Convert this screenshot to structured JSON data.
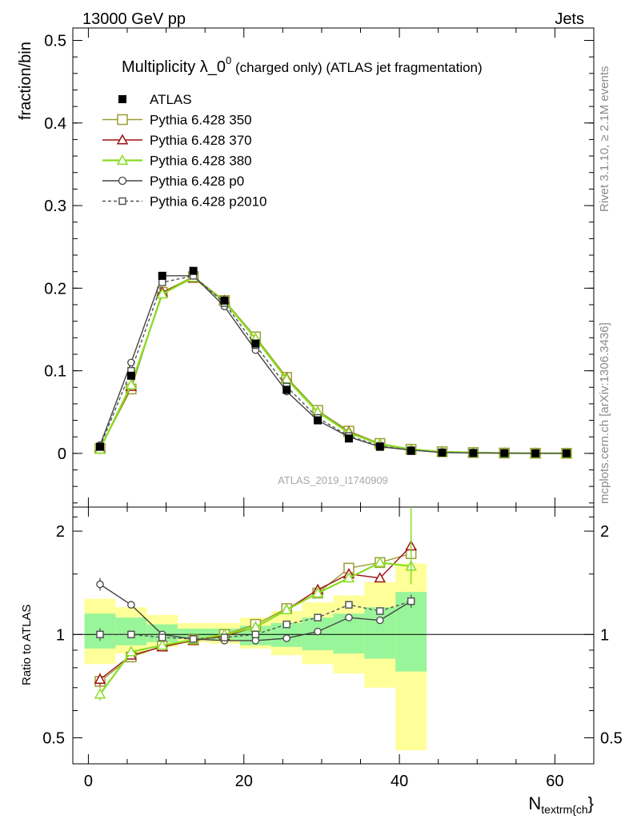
{
  "header": {
    "left": "13000 GeV pp",
    "right": "Jets"
  },
  "side_labels": {
    "top": "Rivet 3.1.10, ≥ 2.1M events",
    "bottom": "mcplots.cern.ch [arXiv:1306.3436]"
  },
  "chart_data": {
    "type": "line",
    "title_main": "Multiplicity λ_0",
    "title_sup": "0",
    "title_rest": " (charged only) (ATLAS jet fragmentation)",
    "watermark": "ATLAS_2019_I1740909",
    "ylabel": "fraction/bin",
    "ratio_ylabel": "Ratio to ATLAS",
    "xlabel_main": "N",
    "xlabel_sub": "textrm{ch",
    "xlabel_close": "}",
    "xlim": [
      -2,
      65
    ],
    "ylim": [
      -0.065,
      0.515
    ],
    "ratio_ylim": [
      0.42,
      2.35
    ],
    "x_ticks": [
      0,
      20,
      40,
      60
    ],
    "x_tick_labels": [
      "0",
      "20",
      "40",
      "60"
    ],
    "y_ticks": [
      0,
      0.1,
      0.2,
      0.3,
      0.4,
      0.5
    ],
    "y_tick_labels": [
      "0",
      "0.1",
      "0.2",
      "0.3",
      "0.4",
      "0.5"
    ],
    "ratio_y_ticks": [
      0.5,
      1,
      2
    ],
    "ratio_y_tick_labels": [
      "0.5",
      "1",
      "2"
    ],
    "x": [
      1.5,
      5.5,
      9.5,
      13.5,
      17.5,
      21.5,
      25.5,
      29.5,
      33.5,
      37.5,
      41.5,
      45.5,
      49.5,
      53.5,
      57.5,
      61.5
    ],
    "bin_edges": [
      -0.5,
      3.5,
      7.5,
      11.5,
      15.5,
      19.5,
      23.5,
      27.5,
      31.5,
      35.5,
      39.5,
      43.5
    ],
    "band_inner_lo": [
      0.91,
      0.93,
      0.95,
      0.97,
      0.96,
      0.93,
      0.92,
      0.9,
      0.88,
      0.85,
      0.78
    ],
    "band_inner_hi": [
      1.15,
      1.12,
      1.07,
      1.04,
      1.04,
      1.06,
      1.08,
      1.12,
      1.15,
      1.2,
      1.33
    ],
    "band_outer_lo": [
      0.82,
      0.88,
      0.92,
      0.95,
      0.94,
      0.91,
      0.87,
      0.82,
      0.77,
      0.7,
      0.46
    ],
    "band_outer_hi": [
      1.27,
      1.2,
      1.14,
      1.08,
      1.08,
      1.12,
      1.17,
      1.24,
      1.3,
      1.42,
      1.61
    ],
    "series": [
      {
        "name": "ATLAS",
        "color": "#000000",
        "marker": "filled-square",
        "dash": "none",
        "values": [
          0.008,
          0.094,
          0.215,
          0.221,
          0.185,
          0.133,
          0.077,
          0.04,
          0.018,
          0.008,
          0.003,
          0.001,
          0.0005,
          0.0003,
          0.0001,
          0.0001
        ]
      },
      {
        "name": "Pythia 6.428 350",
        "color": "#9c9c36",
        "marker": "open-square",
        "dash": "none",
        "values": [
          0.006,
          0.078,
          0.195,
          0.214,
          0.185,
          0.141,
          0.092,
          0.052,
          0.027,
          0.012,
          0.005,
          0.002,
          0.001,
          0.0004,
          0.0002,
          0.0001
        ],
        "ratio": [
          0.73,
          0.86,
          0.925,
          0.965,
          1.0,
          1.07,
          1.19,
          1.32,
          1.56,
          1.62,
          1.72
        ]
      },
      {
        "name": "Pythia 6.428 370",
        "color": "#a01010",
        "marker": "open-triangle",
        "dash": "none",
        "values": [
          0.006,
          0.081,
          0.195,
          0.212,
          0.185,
          0.139,
          0.091,
          0.05,
          0.026,
          0.011,
          0.005,
          0.002,
          0.001,
          0.0004,
          0.0002,
          0.0001
        ],
        "ratio": [
          0.74,
          0.87,
          0.92,
          0.96,
          0.99,
          1.05,
          1.18,
          1.35,
          1.5,
          1.46,
          1.81
        ]
      },
      {
        "name": "Pythia 6.428 380",
        "color": "#88dd22",
        "marker": "open-triangle",
        "dash": "none",
        "values": [
          0.005,
          0.083,
          0.193,
          0.213,
          0.184,
          0.139,
          0.09,
          0.05,
          0.025,
          0.011,
          0.005,
          0.002,
          0.001,
          0.0004,
          0.0002,
          0.0001
        ],
        "ratio": [
          0.67,
          0.89,
          0.93,
          0.965,
          1.0,
          1.05,
          1.18,
          1.32,
          1.46,
          1.62,
          1.58
        ]
      },
      {
        "name": "Pythia 6.428 p0",
        "color": "#444444",
        "marker": "open-circle",
        "dash": "none",
        "values": [
          0.01,
          0.11,
          0.215,
          0.215,
          0.178,
          0.125,
          0.075,
          0.04,
          0.02,
          0.008,
          0.004,
          0.001,
          0.0005,
          0.0003,
          0.0001,
          0.0001
        ],
        "ratio": [
          1.4,
          1.22,
          1.0,
          0.97,
          0.96,
          0.96,
          0.975,
          1.02,
          1.12,
          1.1,
          1.25
        ]
      },
      {
        "name": "Pythia 6.428 p2010",
        "color": "#555555",
        "marker": "open-square",
        "dash": "4,3",
        "values": [
          0.008,
          0.1,
          0.207,
          0.215,
          0.182,
          0.131,
          0.081,
          0.043,
          0.021,
          0.009,
          0.004,
          0.001,
          0.0005,
          0.0003,
          0.0001,
          0.0001
        ],
        "ratio": [
          1.0,
          1.0,
          0.98,
          0.97,
          0.98,
          1.0,
          1.07,
          1.12,
          1.22,
          1.17,
          1.25
        ]
      }
    ]
  }
}
